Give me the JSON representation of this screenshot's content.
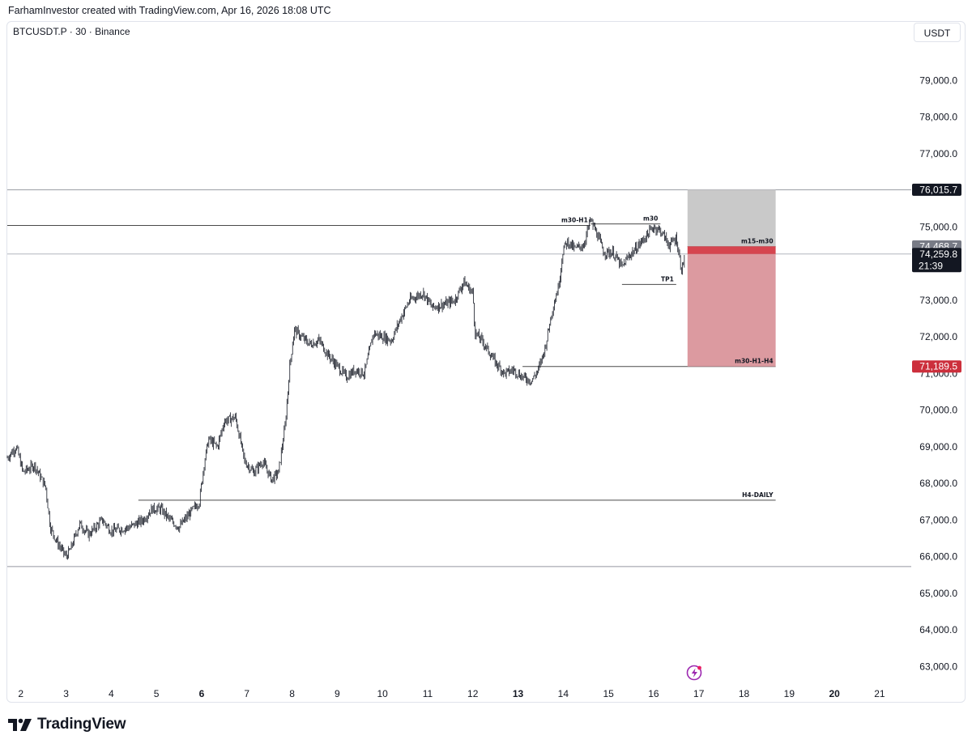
{
  "caption": "FarhamInvestor created with TradingView.com, Apr 16, 2026 18:08 UTC",
  "symbol_line": "BTCUSDT.P · 30 · Binance",
  "currency_button": "USDT",
  "brand": "TradingView",
  "colors": {
    "candle": "#131722",
    "profit_zone": "#c9c9c9",
    "loss_zone": "#dc9aa0",
    "entry_band": "#d6454f",
    "red_tag": "#cc2f3c",
    "dark_tag": "#131722",
    "grey_tag": "#787b86",
    "blue_line": "#b2b5be",
    "level_line": "#4a4a4a",
    "footer_icon": "#9c27b0"
  },
  "chart_data": {
    "type": "candlestick",
    "timeframe": "30",
    "ylim": [
      62500,
      80000
    ],
    "xlim": [
      1.7,
      21.7
    ],
    "y_ticks": [
      {
        "value": 63000,
        "label": "63,000.0"
      },
      {
        "value": 64000,
        "label": "64,000.0"
      },
      {
        "value": 65000,
        "label": "65,000.0"
      },
      {
        "value": 66000,
        "label": "66,000.0"
      },
      {
        "value": 67000,
        "label": "67,000.0"
      },
      {
        "value": 68000,
        "label": "68,000.0"
      },
      {
        "value": 69000,
        "label": "69,000.0"
      },
      {
        "value": 70000,
        "label": "70,000.0"
      },
      {
        "value": 71000,
        "label": "71,000.0"
      },
      {
        "value": 72000,
        "label": "72,000.0"
      },
      {
        "value": 73000,
        "label": "73,000.0"
      },
      {
        "value": 74000,
        "label": "74,000.0"
      },
      {
        "value": 75000,
        "label": "75,000.0"
      },
      {
        "value": 77000,
        "label": "77,000.0"
      },
      {
        "value": 78000,
        "label": "78,000.0"
      },
      {
        "value": 79000,
        "label": "79,000.0"
      }
    ],
    "x_ticks": [
      {
        "value": 2,
        "label": "2",
        "bold": false
      },
      {
        "value": 3,
        "label": "3",
        "bold": false
      },
      {
        "value": 4,
        "label": "4",
        "bold": false
      },
      {
        "value": 5,
        "label": "5",
        "bold": false
      },
      {
        "value": 6,
        "label": "6",
        "bold": true
      },
      {
        "value": 7,
        "label": "7",
        "bold": false
      },
      {
        "value": 8,
        "label": "8",
        "bold": false
      },
      {
        "value": 9,
        "label": "9",
        "bold": false
      },
      {
        "value": 10,
        "label": "10",
        "bold": false
      },
      {
        "value": 11,
        "label": "11",
        "bold": false
      },
      {
        "value": 12,
        "label": "12",
        "bold": false
      },
      {
        "value": 13,
        "label": "13",
        "bold": true
      },
      {
        "value": 14,
        "label": "14",
        "bold": false
      },
      {
        "value": 15,
        "label": "15",
        "bold": false
      },
      {
        "value": 16,
        "label": "16",
        "bold": false
      },
      {
        "value": 17,
        "label": "17",
        "bold": false
      },
      {
        "value": 18,
        "label": "18",
        "bold": false
      },
      {
        "value": 19,
        "label": "19",
        "bold": false
      },
      {
        "value": 20,
        "label": "20",
        "bold": true
      },
      {
        "value": 21,
        "label": "21",
        "bold": false
      }
    ],
    "price_path": [
      [
        1.7,
        68700
      ],
      [
        1.9,
        69000
      ],
      [
        2.05,
        68300
      ],
      [
        2.3,
        68500
      ],
      [
        2.55,
        67900
      ],
      [
        2.65,
        66800
      ],
      [
        2.8,
        66400
      ],
      [
        3.0,
        66000
      ],
      [
        3.1,
        66200
      ],
      [
        3.3,
        66900
      ],
      [
        3.5,
        66600
      ],
      [
        3.8,
        67000
      ],
      [
        4.0,
        66700
      ],
      [
        4.4,
        66800
      ],
      [
        4.7,
        67000
      ],
      [
        4.9,
        67300
      ],
      [
        5.1,
        67300
      ],
      [
        5.3,
        67000
      ],
      [
        5.5,
        66800
      ],
      [
        5.75,
        67200
      ],
      [
        5.95,
        67500
      ],
      [
        6.05,
        68500
      ],
      [
        6.15,
        69200
      ],
      [
        6.35,
        69000
      ],
      [
        6.5,
        69700
      ],
      [
        6.75,
        69800
      ],
      [
        6.95,
        68600
      ],
      [
        7.15,
        68300
      ],
      [
        7.35,
        68600
      ],
      [
        7.55,
        68100
      ],
      [
        7.7,
        68300
      ],
      [
        7.85,
        69600
      ],
      [
        7.95,
        71200
      ],
      [
        8.05,
        72200
      ],
      [
        8.2,
        72000
      ],
      [
        8.4,
        71800
      ],
      [
        8.6,
        71900
      ],
      [
        8.8,
        71500
      ],
      [
        9.0,
        71200
      ],
      [
        9.2,
        70900
      ],
      [
        9.4,
        71100
      ],
      [
        9.6,
        71000
      ],
      [
        9.8,
        72100
      ],
      [
        10.0,
        72000
      ],
      [
        10.2,
        71900
      ],
      [
        10.4,
        72500
      ],
      [
        10.6,
        73000
      ],
      [
        10.9,
        73200
      ],
      [
        11.1,
        72800
      ],
      [
        11.4,
        72900
      ],
      [
        11.6,
        73000
      ],
      [
        11.8,
        73500
      ],
      [
        12.0,
        73200
      ],
      [
        12.05,
        72100
      ],
      [
        12.2,
        71900
      ],
      [
        12.5,
        71300
      ],
      [
        12.7,
        71000
      ],
      [
        12.9,
        71100
      ],
      [
        13.1,
        70900
      ],
      [
        13.3,
        70800
      ],
      [
        13.45,
        71100
      ],
      [
        13.6,
        71700
      ],
      [
        13.75,
        72700
      ],
      [
        13.9,
        73400
      ],
      [
        14.0,
        74400
      ],
      [
        14.1,
        74600
      ],
      [
        14.25,
        74400
      ],
      [
        14.45,
        74500
      ],
      [
        14.6,
        75200
      ],
      [
        14.75,
        74800
      ],
      [
        14.9,
        74300
      ],
      [
        15.1,
        74300
      ],
      [
        15.3,
        73900
      ],
      [
        15.45,
        74200
      ],
      [
        15.6,
        74400
      ],
      [
        15.8,
        74700
      ],
      [
        16.0,
        75000
      ],
      [
        16.15,
        74900
      ],
      [
        16.35,
        74500
      ],
      [
        16.5,
        74700
      ],
      [
        16.62,
        73800
      ],
      [
        16.7,
        74300
      ]
    ],
    "price_labels": [
      {
        "value": 76015.7,
        "label": "76,015.7",
        "style": "dark"
      },
      {
        "value": 74468.7,
        "label": "74,468.7",
        "style": "grey"
      },
      {
        "value": 74259.8,
        "label": "74,259.8",
        "sublabel": "21:39",
        "style": "dark"
      },
      {
        "value": 71189.5,
        "label": "71,189.5",
        "style": "red"
      }
    ],
    "levels": [
      {
        "label": "",
        "y": 76015.7,
        "x1": 1.7,
        "x2": 21.7,
        "color": "grey"
      },
      {
        "label": "",
        "y": 74259.8,
        "x1": 1.7,
        "x2": 21.7,
        "color": "blue"
      },
      {
        "label": "",
        "y": 65730,
        "x1": 1.7,
        "x2": 21.7,
        "color": "grey"
      },
      {
        "label": "m30-H1",
        "y": 75040,
        "x1": 1.7,
        "x2": 14.6,
        "color": "dark"
      },
      {
        "label": "m30",
        "y": 75080,
        "x1": 14.6,
        "x2": 16.15,
        "color": "dark"
      },
      {
        "label": "TP1",
        "y": 73430,
        "x1": 15.3,
        "x2": 16.5,
        "color": "dark"
      },
      {
        "label": "m30-H1-H4",
        "y": 71189.5,
        "x1": 13.1,
        "x2": 18.7,
        "color": "dark"
      },
      {
        "label": "H4-DAILY",
        "y": 67540,
        "x1": 4.6,
        "x2": 18.7,
        "color": "dark"
      },
      {
        "label": "m15-m30",
        "y": 74468.7,
        "x1": 16.75,
        "x2": 18.7,
        "color": "dark"
      }
    ],
    "position_tool": {
      "x1": 16.75,
      "x2": 18.7,
      "profit_top": 76015.7,
      "entry": 74468.7,
      "current": 74259.8,
      "stop": 71189.5
    }
  }
}
